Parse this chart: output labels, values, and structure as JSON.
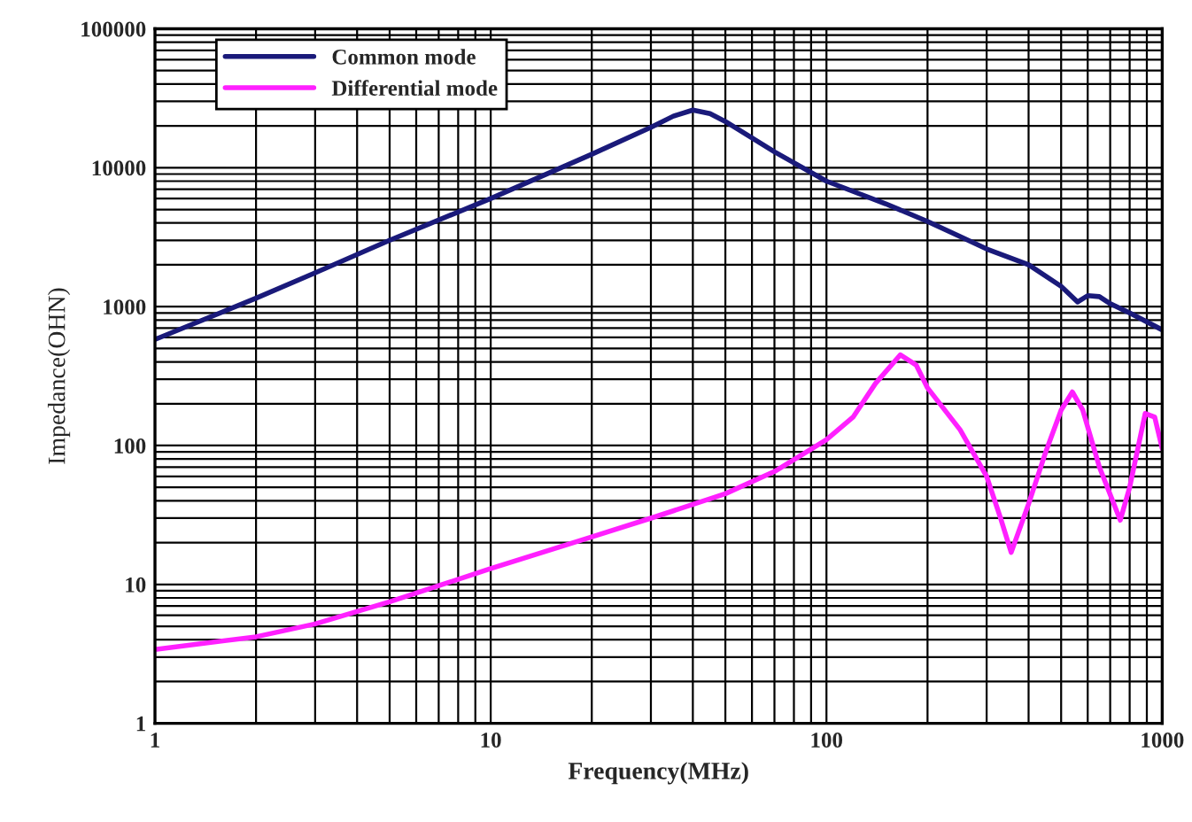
{
  "chart_data": {
    "type": "line",
    "xlabel": "Frequency(MHz)",
    "ylabel": "Impedance(OHN)",
    "log": "xy",
    "grid": true,
    "legend": "top left",
    "marker": "none",
    "line_style": "solid",
    "xlim": [
      1,
      1000
    ],
    "xticks": [
      1,
      10,
      100,
      1000
    ],
    "ylim": [
      1,
      100000
    ],
    "yticks": [
      1,
      10,
      100,
      1000,
      10000,
      100000
    ],
    "series": [
      {
        "name": "Common mode",
        "color": "#1a1a7a",
        "x": [
          1,
          2,
          3,
          5,
          10,
          20,
          30,
          35,
          40,
          45,
          50,
          70,
          100,
          150,
          200,
          250,
          300,
          400,
          500,
          560,
          600,
          650,
          700,
          800,
          1000
        ],
        "values": [
          580,
          1150,
          1750,
          3000,
          6000,
          12500,
          19500,
          23500,
          26000,
          24500,
          21500,
          13000,
          8000,
          5500,
          4100,
          3200,
          2600,
          2000,
          1400,
          1080,
          1200,
          1180,
          1050,
          900,
          680
        ]
      },
      {
        "name": "Differential mode",
        "color": "#ff20ff",
        "x": [
          1,
          2,
          3,
          5,
          10,
          20,
          30,
          50,
          70,
          100,
          120,
          140,
          166,
          185,
          200,
          250,
          300,
          330,
          355,
          400,
          450,
          500,
          540,
          580,
          650,
          750,
          800,
          890,
          950,
          1000
        ],
        "values": [
          3.4,
          4.2,
          5.2,
          7.5,
          13,
          22,
          30,
          45,
          65,
          110,
          160,
          280,
          450,
          380,
          260,
          130,
          60,
          30,
          17,
          38,
          90,
          180,
          243,
          180,
          70,
          29,
          50,
          170,
          160,
          95
        ]
      }
    ]
  }
}
